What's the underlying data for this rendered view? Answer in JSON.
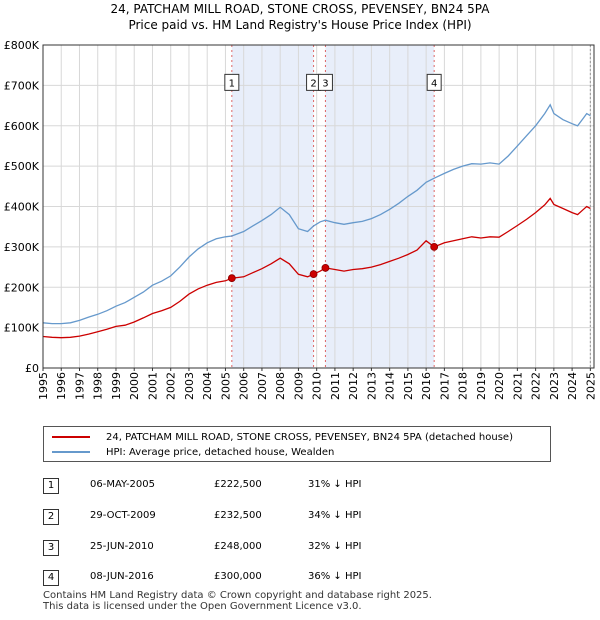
{
  "title_line1": "24, PATCHAM MILL ROAD, STONE CROSS, PEVENSEY, BN24 5PA",
  "title_line2": "Price paid vs. HM Land Registry's House Price Index (HPI)",
  "chart_data": {
    "type": "line",
    "title": "Price paid vs. HM Land Registry's House Price Index (HPI)",
    "xlabel": "",
    "ylabel": "",
    "xlim": [
      1995,
      2025.2
    ],
    "ylim": [
      0,
      800000
    ],
    "yticks": [
      0,
      100000,
      200000,
      300000,
      400000,
      500000,
      600000,
      700000,
      800000
    ],
    "ytick_labels": [
      "£0",
      "£100K",
      "£200K",
      "£300K",
      "£400K",
      "£500K",
      "£600K",
      "£700K",
      "£800K"
    ],
    "xticks": [
      1995,
      1996,
      1997,
      1998,
      1999,
      2000,
      2001,
      2002,
      2003,
      2004,
      2005,
      2006,
      2007,
      2008,
      2009,
      2010,
      2011,
      2012,
      2013,
      2014,
      2015,
      2016,
      2017,
      2018,
      2019,
      2020,
      2021,
      2022,
      2023,
      2024,
      2025
    ],
    "grid": true,
    "shaded_spans": [
      [
        2005.35,
        2009.83
      ],
      [
        2010.48,
        2016.44
      ]
    ],
    "series": [
      {
        "name": "24, PATCHAM MILL ROAD, STONE CROSS, PEVENSEY, BN24 5PA (detached house)",
        "color": "#cc0000",
        "points": [
          [
            1995.0,
            78000
          ],
          [
            1995.5,
            76000
          ],
          [
            1996.0,
            75000
          ],
          [
            1996.5,
            76000
          ],
          [
            1997.0,
            79000
          ],
          [
            1997.5,
            84000
          ],
          [
            1998.0,
            90000
          ],
          [
            1998.5,
            96000
          ],
          [
            1999.0,
            103000
          ],
          [
            1999.5,
            106000
          ],
          [
            2000.0,
            114000
          ],
          [
            2000.5,
            124000
          ],
          [
            2001.0,
            135000
          ],
          [
            2001.5,
            142000
          ],
          [
            2002.0,
            150000
          ],
          [
            2002.5,
            165000
          ],
          [
            2003.0,
            183000
          ],
          [
            2003.5,
            196000
          ],
          [
            2004.0,
            205000
          ],
          [
            2004.5,
            212000
          ],
          [
            2005.0,
            216000
          ],
          [
            2005.35,
            222500
          ],
          [
            2006.0,
            226000
          ],
          [
            2006.5,
            236000
          ],
          [
            2007.0,
            246000
          ],
          [
            2007.5,
            258000
          ],
          [
            2008.0,
            272000
          ],
          [
            2008.5,
            258000
          ],
          [
            2009.0,
            232000
          ],
          [
            2009.5,
            226000
          ],
          [
            2009.83,
            232500
          ],
          [
            2010.2,
            240000
          ],
          [
            2010.48,
            248000
          ],
          [
            2011.0,
            244000
          ],
          [
            2011.5,
            240000
          ],
          [
            2012.0,
            244000
          ],
          [
            2012.5,
            246000
          ],
          [
            2013.0,
            250000
          ],
          [
            2013.5,
            256000
          ],
          [
            2014.0,
            264000
          ],
          [
            2014.5,
            272000
          ],
          [
            2015.0,
            281000
          ],
          [
            2015.5,
            292000
          ],
          [
            2016.0,
            315000
          ],
          [
            2016.44,
            300000
          ],
          [
            2017.0,
            310000
          ],
          [
            2017.5,
            315000
          ],
          [
            2018.0,
            320000
          ],
          [
            2018.5,
            325000
          ],
          [
            2019.0,
            322000
          ],
          [
            2019.5,
            325000
          ],
          [
            2020.0,
            324000
          ],
          [
            2020.5,
            338000
          ],
          [
            2021.0,
            353000
          ],
          [
            2021.5,
            368000
          ],
          [
            2022.0,
            385000
          ],
          [
            2022.5,
            404000
          ],
          [
            2022.8,
            420000
          ],
          [
            2023.0,
            405000
          ],
          [
            2023.5,
            395000
          ],
          [
            2024.0,
            385000
          ],
          [
            2024.3,
            380000
          ],
          [
            2024.6,
            392000
          ],
          [
            2024.8,
            400000
          ],
          [
            2025.0,
            395000
          ]
        ]
      },
      {
        "name": "HPI: Average price, detached house, Wealden",
        "color": "#6699cc",
        "points": [
          [
            1995.0,
            112000
          ],
          [
            1995.5,
            110000
          ],
          [
            1996.0,
            110000
          ],
          [
            1996.5,
            112000
          ],
          [
            1997.0,
            118000
          ],
          [
            1997.5,
            126000
          ],
          [
            1998.0,
            133000
          ],
          [
            1998.5,
            142000
          ],
          [
            1999.0,
            153000
          ],
          [
            1999.5,
            162000
          ],
          [
            2000.0,
            175000
          ],
          [
            2000.5,
            188000
          ],
          [
            2001.0,
            205000
          ],
          [
            2001.5,
            215000
          ],
          [
            2002.0,
            228000
          ],
          [
            2002.5,
            250000
          ],
          [
            2003.0,
            275000
          ],
          [
            2003.5,
            295000
          ],
          [
            2004.0,
            310000
          ],
          [
            2004.5,
            320000
          ],
          [
            2005.0,
            325000
          ],
          [
            2005.35,
            327000
          ],
          [
            2006.0,
            338000
          ],
          [
            2006.5,
            352000
          ],
          [
            2007.0,
            365000
          ],
          [
            2007.5,
            380000
          ],
          [
            2008.0,
            398000
          ],
          [
            2008.5,
            380000
          ],
          [
            2009.0,
            345000
          ],
          [
            2009.5,
            338000
          ],
          [
            2009.83,
            352000
          ],
          [
            2010.2,
            362000
          ],
          [
            2010.48,
            366000
          ],
          [
            2011.0,
            360000
          ],
          [
            2011.5,
            356000
          ],
          [
            2012.0,
            360000
          ],
          [
            2012.5,
            363000
          ],
          [
            2013.0,
            370000
          ],
          [
            2013.5,
            380000
          ],
          [
            2014.0,
            393000
          ],
          [
            2014.5,
            408000
          ],
          [
            2015.0,
            425000
          ],
          [
            2015.5,
            440000
          ],
          [
            2016.0,
            460000
          ],
          [
            2016.44,
            470000
          ],
          [
            2017.0,
            482000
          ],
          [
            2017.5,
            492000
          ],
          [
            2018.0,
            500000
          ],
          [
            2018.5,
            506000
          ],
          [
            2019.0,
            505000
          ],
          [
            2019.5,
            508000
          ],
          [
            2020.0,
            505000
          ],
          [
            2020.5,
            525000
          ],
          [
            2021.0,
            550000
          ],
          [
            2021.5,
            575000
          ],
          [
            2022.0,
            600000
          ],
          [
            2022.5,
            630000
          ],
          [
            2022.8,
            652000
          ],
          [
            2023.0,
            630000
          ],
          [
            2023.5,
            615000
          ],
          [
            2024.0,
            605000
          ],
          [
            2024.3,
            600000
          ],
          [
            2024.6,
            618000
          ],
          [
            2024.8,
            630000
          ],
          [
            2025.0,
            625000
          ]
        ]
      }
    ],
    "sales": [
      {
        "label": "1",
        "x": 2005.35,
        "price": 222500
      },
      {
        "label": "2",
        "x": 2009.83,
        "price": 232500
      },
      {
        "label": "3",
        "x": 2010.48,
        "price": 248000
      },
      {
        "label": "4",
        "x": 2016.44,
        "price": 300000
      }
    ]
  },
  "legend": {
    "line1": "24, PATCHAM MILL ROAD, STONE CROSS, PEVENSEY, BN24 5PA (detached house)",
    "line2": "HPI: Average price, detached house, Wealden"
  },
  "sales_table": [
    {
      "num": "1",
      "date": "06-MAY-2005",
      "price": "£222,500",
      "hpi": "31% ↓ HPI"
    },
    {
      "num": "2",
      "date": "29-OCT-2009",
      "price": "£232,500",
      "hpi": "34% ↓ HPI"
    },
    {
      "num": "3",
      "date": "25-JUN-2010",
      "price": "£248,000",
      "hpi": "32% ↓ HPI"
    },
    {
      "num": "4",
      "date": "08-JUN-2016",
      "price": "£300,000",
      "hpi": "36% ↓ HPI"
    }
  ],
  "footer_line1": "Contains HM Land Registry data © Crown copyright and database right 2025.",
  "footer_line2": "This data is licensed under the Open Government Licence v3.0."
}
